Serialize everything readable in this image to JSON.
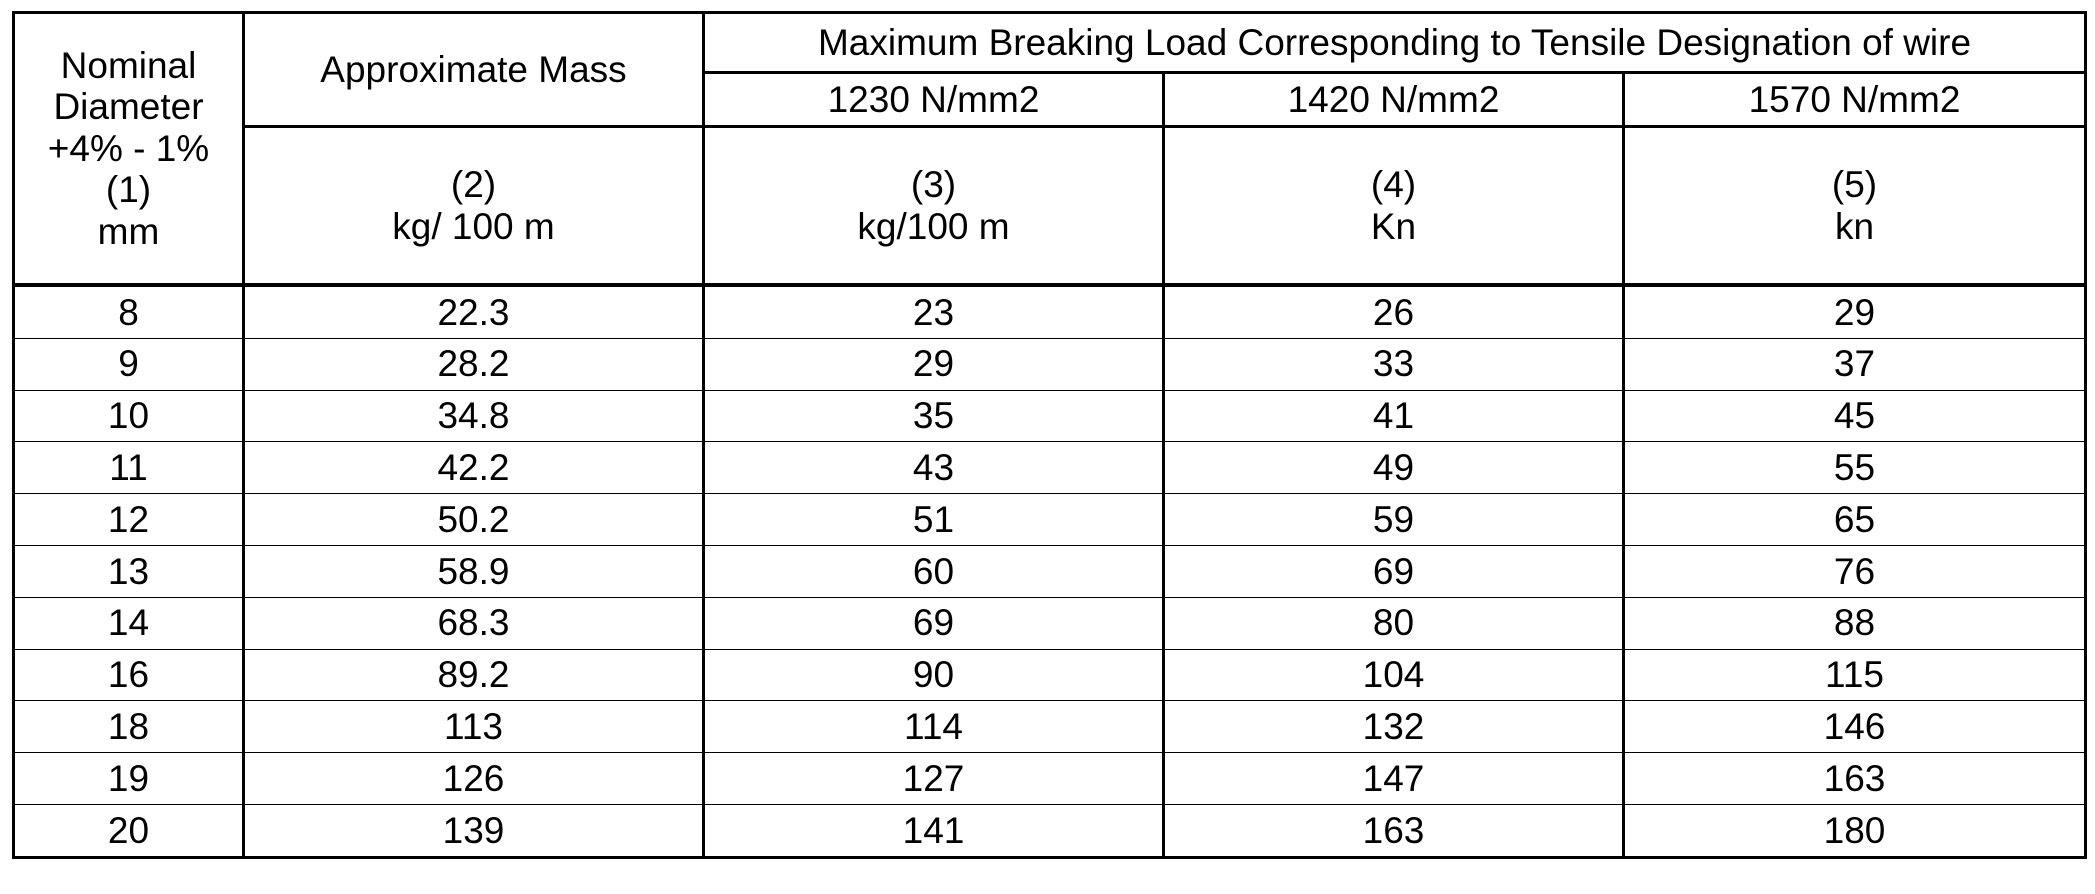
{
  "header": {
    "col1": [
      "Nominal",
      "Diameter",
      "+4% - 1%",
      "(1)",
      "mm"
    ],
    "col2_title": "Approximate Mass",
    "group_title": "Maximum Breaking Load Corresponding to Tensile Designation of wire",
    "grades": [
      "1230 N/mm2",
      "1420 N/mm2",
      "1570 N/mm2"
    ],
    "col2_sub": [
      "(2)",
      "kg/ 100 m"
    ],
    "col3_sub": [
      "(3)",
      "kg/100 m"
    ],
    "col4_sub": [
      "(4)",
      "Kn"
    ],
    "col5_sub": [
      "(5)",
      "kn"
    ]
  },
  "rows": [
    [
      "8",
      "22.3",
      "23",
      "26",
      "29"
    ],
    [
      "9",
      "28.2",
      "29",
      "33",
      "37"
    ],
    [
      "10",
      "34.8",
      "35",
      "41",
      "45"
    ],
    [
      "11",
      "42.2",
      "43",
      "49",
      "55"
    ],
    [
      "12",
      "50.2",
      "51",
      "59",
      "65"
    ],
    [
      "13",
      "58.9",
      "60",
      "69",
      "76"
    ],
    [
      "14",
      "68.3",
      "69",
      "80",
      "88"
    ],
    [
      "16",
      "89.2",
      "90",
      "104",
      "115"
    ],
    [
      "18",
      "113",
      "114",
      "132",
      "146"
    ],
    [
      "19",
      "126",
      "127",
      "147",
      "163"
    ],
    [
      "20",
      "139",
      "141",
      "163",
      "180"
    ]
  ]
}
